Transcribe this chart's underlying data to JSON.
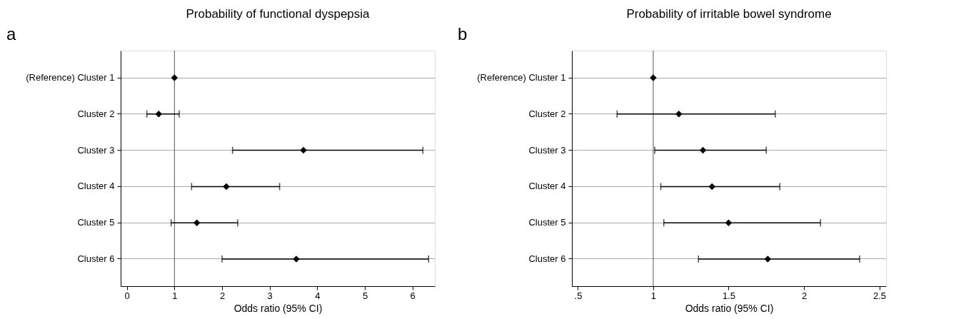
{
  "chart_data": [
    {
      "type": "scatter",
      "orientation": "horizontal",
      "title": "Probability of functional dyspepsia",
      "xlabel": "Odds ratio (95% CI)",
      "annotations": [
        "a"
      ],
      "categories": [
        "(Reference) Cluster 1",
        "Cluster 2",
        "Cluster 3",
        "Cluster 4",
        "Cluster 5",
        "Cluster 6"
      ],
      "series": [
        {
          "color": "#000000",
          "values": [
            1,
            0.67,
            3.71,
            2.09,
            1.47,
            3.56
          ],
          "errors": [
            null,
            [
              0.42,
              1.1
            ],
            [
              2.22,
              6.22
            ],
            [
              1.36,
              3.21
            ],
            [
              0.93,
              2.33
            ],
            [
              2.0,
              6.34
            ]
          ]
        }
      ],
      "xlim": [
        -0.13,
        6.47
      ],
      "xticks": [
        0,
        1,
        2,
        3,
        4,
        5,
        6
      ],
      "ref_lines": [
        {
          "axis": "x",
          "value": 1,
          "color": "#555555"
        }
      ],
      "grid": "y",
      "marker": "diamond"
    },
    {
      "type": "scatter",
      "orientation": "horizontal",
      "title": "Probability of irritable bowel syndrome",
      "xlabel": "Odds ratio (95% CI)",
      "annotations": [
        "b"
      ],
      "categories": [
        "(Reference) Cluster 1",
        "Cluster 2",
        "Cluster 3",
        "Cluster 4",
        "Cluster 5",
        "Cluster 6"
      ],
      "series": [
        {
          "color": "#000000",
          "values": [
            1,
            1.17,
            1.33,
            1.39,
            1.5,
            1.76
          ],
          "errors": [
            null,
            [
              0.76,
              1.81
            ],
            [
              1.01,
              1.75
            ],
            [
              1.05,
              1.84
            ],
            [
              1.07,
              2.11
            ],
            [
              1.3,
              2.37
            ]
          ]
        }
      ],
      "xlim": [
        0.46,
        2.545
      ],
      "xticks": [
        {
          "value": 0.5,
          "label": ".5"
        },
        1,
        1.5,
        2,
        2.5
      ],
      "ref_lines": [
        {
          "axis": "x",
          "value": 1,
          "color": "#555555"
        }
      ],
      "grid": "y",
      "marker": "diamond"
    }
  ]
}
